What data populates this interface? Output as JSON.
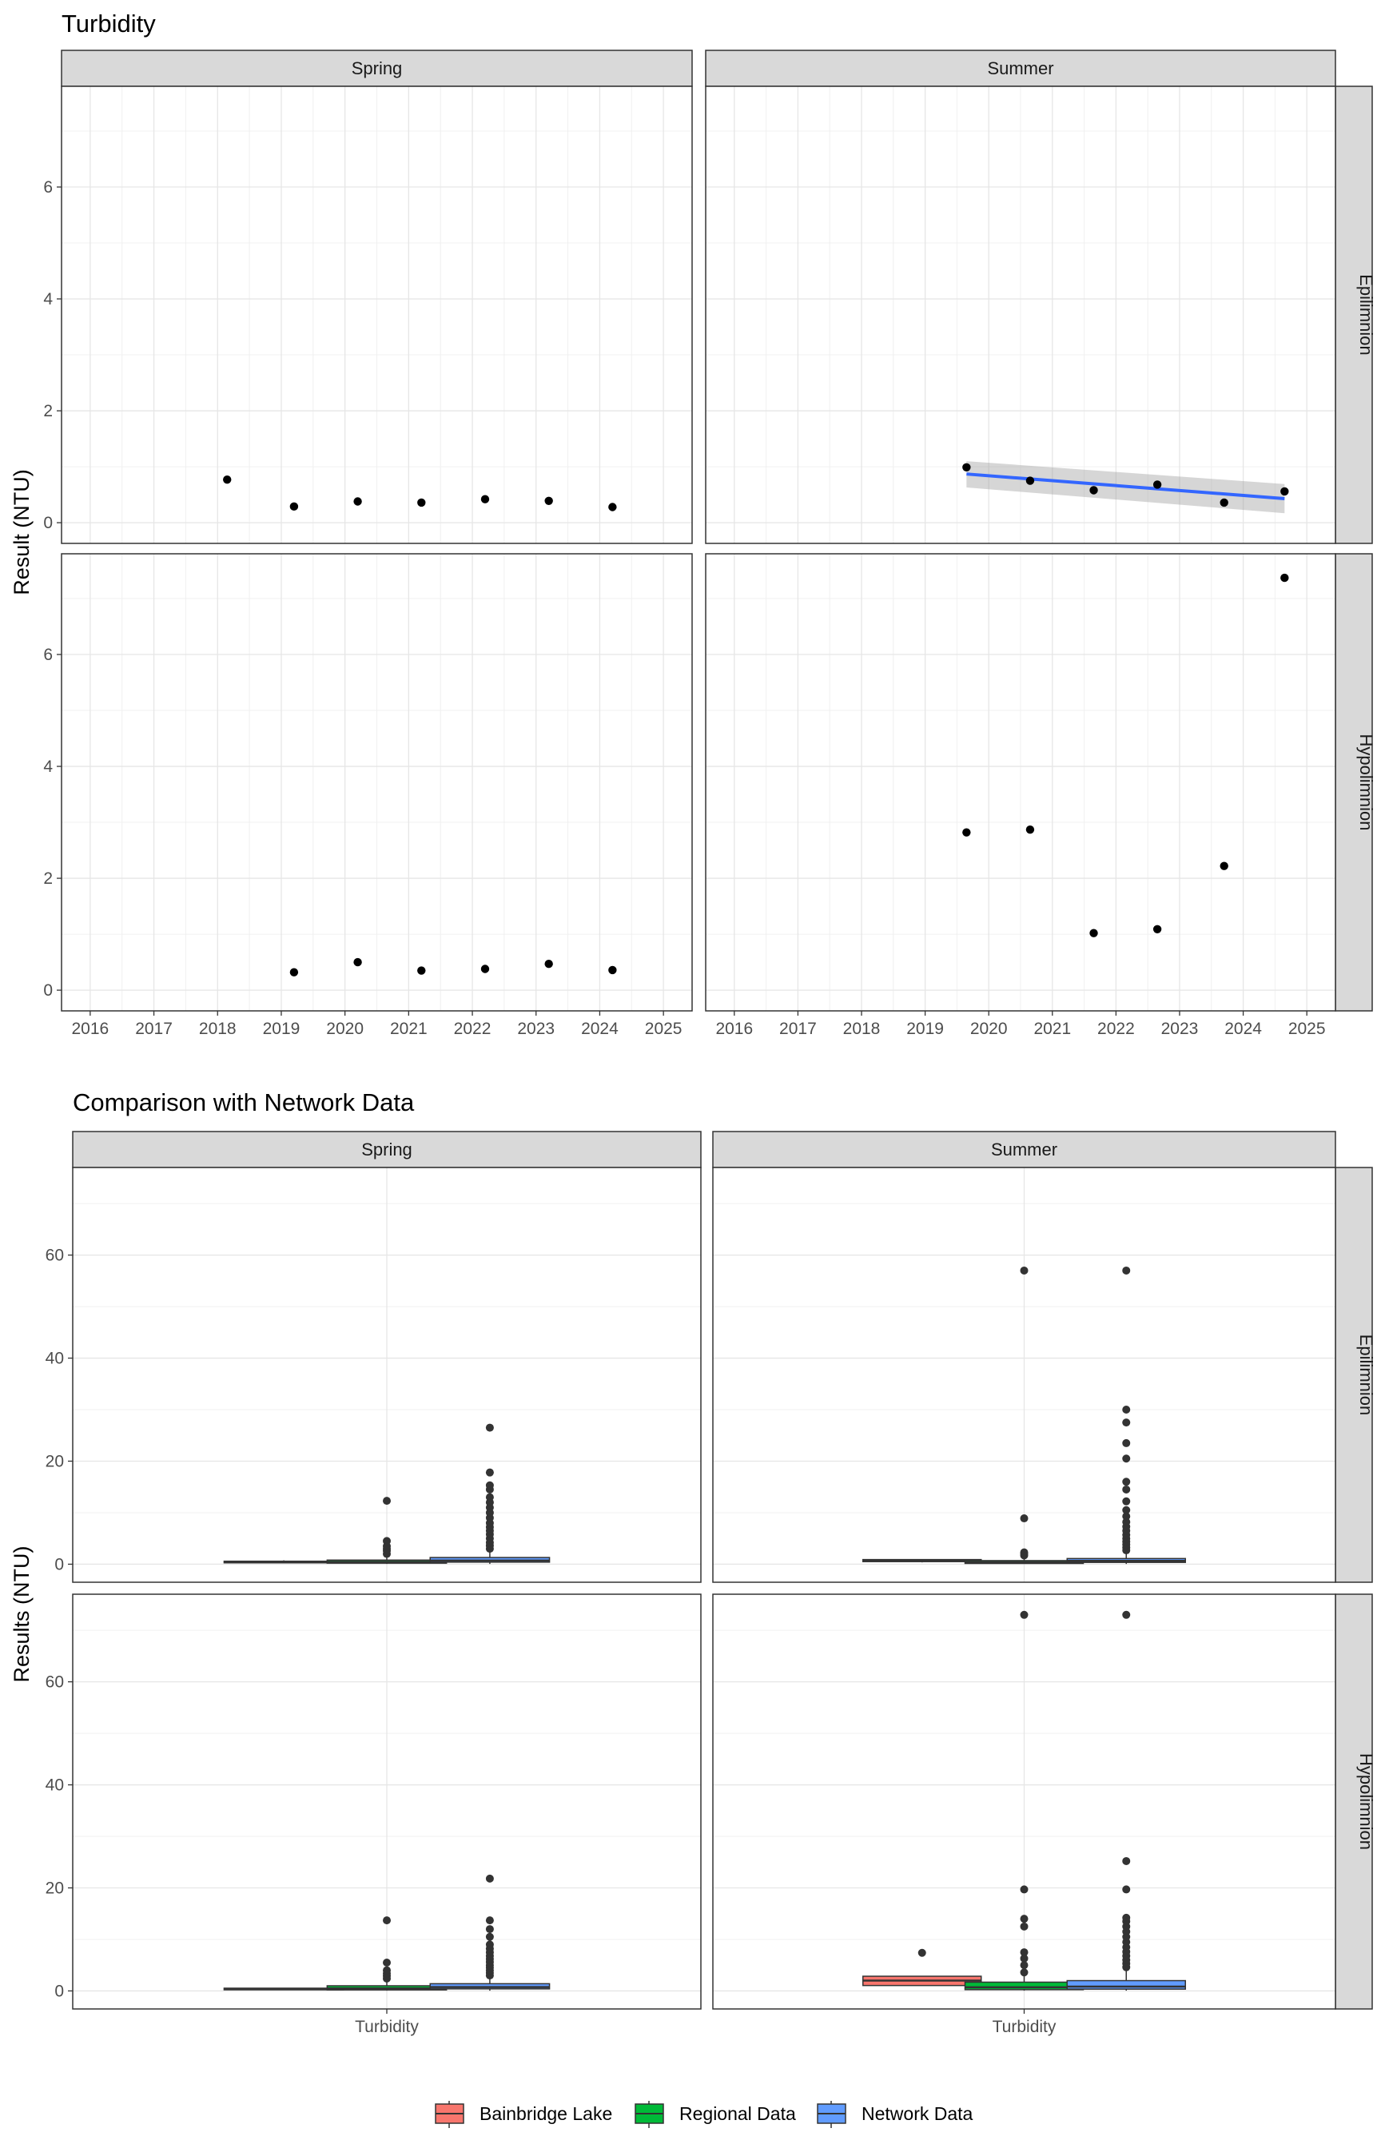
{
  "chart_data": [
    {
      "type": "scatter",
      "title": "Turbidity",
      "ylabel": "Result (NTU)",
      "xlabel": "",
      "x_ticks": [
        "2016",
        "2017",
        "2018",
        "2019",
        "2020",
        "2021",
        "2022",
        "2023",
        "2024",
        "2025"
      ],
      "y_ticks": [
        "0",
        "2",
        "4",
        "6"
      ],
      "xlim": [
        2015.55,
        2025.45
      ],
      "ylim": [
        -0.37,
        7.8
      ],
      "grid": true,
      "facet_cols": [
        "Spring",
        "Summer"
      ],
      "facet_rows": [
        "Epilimnion",
        "Hypolimnion"
      ],
      "panels": [
        {
          "season": "Spring",
          "layer": "Epilimnion",
          "points": [
            [
              2018.15,
              0.77
            ],
            [
              2019.2,
              0.29
            ],
            [
              2020.2,
              0.38
            ],
            [
              2021.2,
              0.36
            ],
            [
              2022.2,
              0.42
            ],
            [
              2023.2,
              0.39
            ],
            [
              2024.2,
              0.28
            ]
          ],
          "trend": null
        },
        {
          "season": "Summer",
          "layer": "Epilimnion",
          "points": [
            [
              2019.65,
              0.99
            ],
            [
              2020.65,
              0.75
            ],
            [
              2021.65,
              0.58
            ],
            [
              2022.65,
              0.68
            ],
            [
              2023.7,
              0.36
            ],
            [
              2024.65,
              0.56
            ]
          ],
          "trend": {
            "x": [
              2019.65,
              2024.65
            ],
            "y": [
              0.87,
              0.43
            ],
            "ci_start": [
              0.63,
              1.1
            ],
            "ci_end": [
              0.17,
              0.69
            ]
          }
        },
        {
          "season": "Spring",
          "layer": "Hypolimnion",
          "points": [
            [
              2019.2,
              0.32
            ],
            [
              2020.2,
              0.5
            ],
            [
              2021.2,
              0.35
            ],
            [
              2022.2,
              0.38
            ],
            [
              2023.2,
              0.47
            ],
            [
              2024.2,
              0.36
            ]
          ],
          "trend": null
        },
        {
          "season": "Summer",
          "layer": "Hypolimnion",
          "points": [
            [
              2019.65,
              2.82
            ],
            [
              2020.65,
              2.87
            ],
            [
              2021.65,
              1.02
            ],
            [
              2022.65,
              1.09
            ],
            [
              2023.7,
              2.22
            ],
            [
              2024.65,
              7.37
            ]
          ],
          "trend": null
        }
      ]
    },
    {
      "type": "box",
      "title": "Comparison with Network Data",
      "ylabel": "Results (NTU)",
      "xlabel": "",
      "categories": [
        "Turbidity"
      ],
      "y_ticks": [
        "0",
        "20",
        "40",
        "60"
      ],
      "ylim": [
        -3.5,
        77
      ],
      "grid": true,
      "facet_cols": [
        "Spring",
        "Summer"
      ],
      "facet_rows": [
        "Epilimnion",
        "Hypolimnion"
      ],
      "legend_position": "bottom",
      "series": [
        {
          "name": "Bainbridge Lake",
          "color": "#F8766D"
        },
        {
          "name": "Regional Data",
          "color": "#00BA38"
        },
        {
          "name": "Network Data",
          "color": "#619CFF"
        }
      ],
      "panels": [
        {
          "season": "Spring",
          "layer": "Epilimnion",
          "boxes": [
            {
              "q1": 0.3,
              "median": 0.4,
              "q3": 0.55,
              "whisker_low": 0.25,
              "whisker_high": 0.75,
              "outliers": []
            },
            {
              "q1": 0.2,
              "median": 0.45,
              "q3": 0.8,
              "whisker_low": 0.05,
              "whisker_high": 1.6,
              "outliers": [
                2,
                2.6,
                3,
                3.5,
                4.5,
                12.3
              ]
            },
            {
              "q1": 0.4,
              "median": 0.7,
              "q3": 1.3,
              "whisker_low": 0.05,
              "whisker_high": 2.5,
              "outliers": [
                3,
                3.6,
                4.2,
                5,
                5.8,
                6.5,
                7.2,
                8,
                9,
                10,
                11,
                12,
                13,
                14.5,
                15.3,
                17.8,
                26.5
              ]
            }
          ]
        },
        {
          "season": "Summer",
          "layer": "Epilimnion",
          "boxes": [
            {
              "q1": 0.5,
              "median": 0.65,
              "q3": 0.9,
              "whisker_low": 0.35,
              "whisker_high": 1.0,
              "outliers": []
            },
            {
              "q1": 0.15,
              "median": 0.4,
              "q3": 0.7,
              "whisker_low": 0.05,
              "whisker_high": 1.4,
              "outliers": [
                1.7,
                2,
                2.3,
                8.9,
                57
              ]
            },
            {
              "q1": 0.35,
              "median": 0.65,
              "q3": 1.1,
              "whisker_low": 0.05,
              "whisker_high": 2.2,
              "outliers": [
                2.7,
                3.2,
                3.8,
                4.4,
                5,
                5.7,
                6.5,
                7.3,
                8.2,
                9.3,
                10.5,
                12.2,
                14.5,
                16,
                20.5,
                23.5,
                27.5,
                30,
                57
              ]
            }
          ]
        },
        {
          "season": "Spring",
          "layer": "Hypolimnion",
          "boxes": [
            {
              "q1": 0.3,
              "median": 0.37,
              "q3": 0.45,
              "whisker_low": 0.3,
              "whisker_high": 0.5,
              "outliers": []
            },
            {
              "q1": 0.2,
              "median": 0.5,
              "q3": 1.0,
              "whisker_low": 0.05,
              "whisker_high": 2,
              "outliers": [
                2.4,
                2.9,
                3.4,
                4,
                5.5,
                13.7
              ]
            },
            {
              "q1": 0.4,
              "median": 0.75,
              "q3": 1.4,
              "whisker_low": 0.05,
              "whisker_high": 2.6,
              "outliers": [
                3,
                3.5,
                4,
                4.5,
                5,
                5.6,
                6.2,
                6.8,
                7.5,
                8.2,
                9,
                10.5,
                12,
                13.7,
                21.8
              ]
            }
          ]
        },
        {
          "season": "Summer",
          "layer": "Hypolimnion",
          "boxes": [
            {
              "q1": 1.05,
              "median": 2.0,
              "q3": 2.85,
              "whisker_low": 1.0,
              "whisker_high": 2.9,
              "outliers": [
                7.4
              ]
            },
            {
              "q1": 0.25,
              "median": 0.7,
              "q3": 1.7,
              "whisker_low": 0.05,
              "whisker_high": 3,
              "outliers": [
                3.6,
                5,
                6.3,
                7.5,
                12.5,
                14,
                19.7,
                73
              ]
            },
            {
              "q1": 0.35,
              "median": 0.85,
              "q3": 2.0,
              "whisker_low": 0.05,
              "whisker_high": 4,
              "outliers": [
                4.6,
                5.3,
                6,
                6.8,
                7.6,
                8.5,
                9.5,
                10.5,
                11.5,
                12.5,
                13.5,
                14.2,
                19.7,
                25.2,
                73
              ]
            }
          ]
        }
      ]
    }
  ],
  "legend": {
    "items": [
      "Bainbridge Lake",
      "Regional Data",
      "Network Data"
    ]
  }
}
